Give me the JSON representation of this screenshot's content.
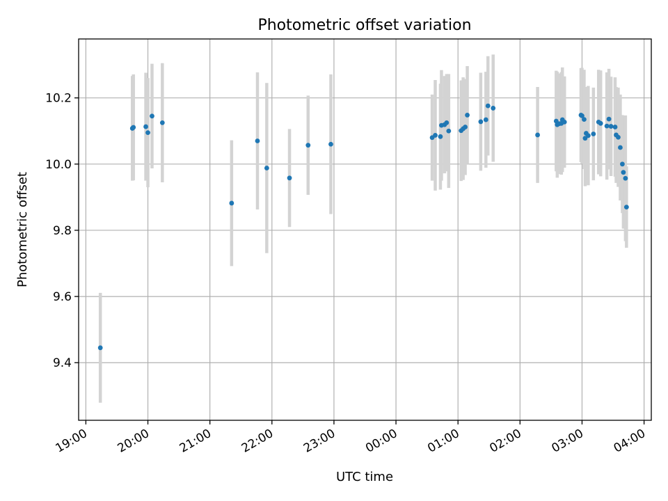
{
  "chart_data": {
    "type": "scatter",
    "title": "Photometric offset variation",
    "xlabel": "UTC time",
    "ylabel": "Photometric offset",
    "x_ticks": [
      "19:00",
      "20:00",
      "21:00",
      "22:00",
      "23:00",
      "00:00",
      "01:00",
      "02:00",
      "03:00",
      "04:00"
    ],
    "y_ticks": [
      "9.4",
      "9.6",
      "9.8",
      "10.0",
      "10.2"
    ],
    "xlim": [
      "2000-01-01T18:53",
      "2000-01-02T04:07"
    ],
    "ylim": [
      9.226,
      10.378
    ],
    "grid": true,
    "colors": {
      "point": "#1f77b4",
      "errorbar": "#d3d3d3",
      "grid": "#b0b0b0"
    },
    "series": [
      {
        "time": [
          "2000-01-01T19:14",
          "2000-01-01T19:45",
          "2000-01-01T19:46",
          "2000-01-01T19:58",
          "2000-01-01T20:00",
          "2000-01-01T20:04",
          "2000-01-01T20:14",
          "2000-01-01T21:21",
          "2000-01-01T21:46",
          "2000-01-01T21:55",
          "2000-01-01T22:17",
          "2000-01-01T22:35",
          "2000-01-01T22:57",
          "2000-01-02T00:35",
          "2000-01-02T00:38",
          "2000-01-02T00:43",
          "2000-01-02T00:44",
          "2000-01-02T00:47",
          "2000-01-02T00:49",
          "2000-01-02T00:51",
          "2000-01-02T01:03",
          "2000-01-02T01:05",
          "2000-01-02T01:07",
          "2000-01-02T01:09",
          "2000-01-02T01:22",
          "2000-01-02T01:27",
          "2000-01-02T01:29",
          "2000-01-02T01:34",
          "2000-01-02T02:17",
          "2000-01-02T02:35",
          "2000-01-02T02:36",
          "2000-01-02T02:38",
          "2000-01-02T02:40",
          "2000-01-02T02:41",
          "2000-01-02T02:43",
          "2000-01-02T02:59",
          "2000-01-02T03:00",
          "2000-01-02T03:02",
          "2000-01-02T03:03",
          "2000-01-02T03:04",
          "2000-01-02T03:06",
          "2000-01-02T03:11",
          "2000-01-02T03:16",
          "2000-01-02T03:18",
          "2000-01-02T03:24",
          "2000-01-02T03:26",
          "2000-01-02T03:28",
          "2000-01-02T03:32",
          "2000-01-02T03:33",
          "2000-01-02T03:35",
          "2000-01-02T03:37",
          "2000-01-02T03:39",
          "2000-01-02T03:40",
          "2000-01-02T03:42",
          "2000-01-02T03:43"
        ],
        "values": [
          9.445,
          10.108,
          10.111,
          10.113,
          10.095,
          10.145,
          10.125,
          9.882,
          10.07,
          9.988,
          9.958,
          10.057,
          10.06,
          10.08,
          10.087,
          10.083,
          10.117,
          10.119,
          10.125,
          10.1,
          10.101,
          10.107,
          10.112,
          10.148,
          10.128,
          10.134,
          10.176,
          10.169,
          10.088,
          10.13,
          10.119,
          10.122,
          10.123,
          10.134,
          10.127,
          10.148,
          10.146,
          10.135,
          10.078,
          10.093,
          10.086,
          10.091,
          10.127,
          10.123,
          10.115,
          10.136,
          10.114,
          10.112,
          10.088,
          10.081,
          10.05,
          10.0,
          9.975,
          9.957,
          9.87
        ],
        "errors": [
          0.166,
          0.158,
          0.16,
          0.163,
          0.165,
          0.158,
          0.18,
          0.19,
          0.207,
          0.257,
          0.148,
          0.15,
          0.211,
          0.13,
          0.167,
          0.16,
          0.167,
          0.147,
          0.147,
          0.172,
          0.152,
          0.155,
          0.145,
          0.148,
          0.148,
          0.145,
          0.15,
          0.162,
          0.145,
          0.152,
          0.16,
          0.152,
          0.155,
          0.158,
          0.138,
          0.142,
          0.145,
          0.15,
          0.145,
          0.14,
          0.15,
          0.14,
          0.158,
          0.16,
          0.162,
          0.152,
          0.15,
          0.15,
          0.145,
          0.15,
          0.16,
          0.148,
          0.17,
          0.19,
          0.123
        ]
      }
    ]
  }
}
